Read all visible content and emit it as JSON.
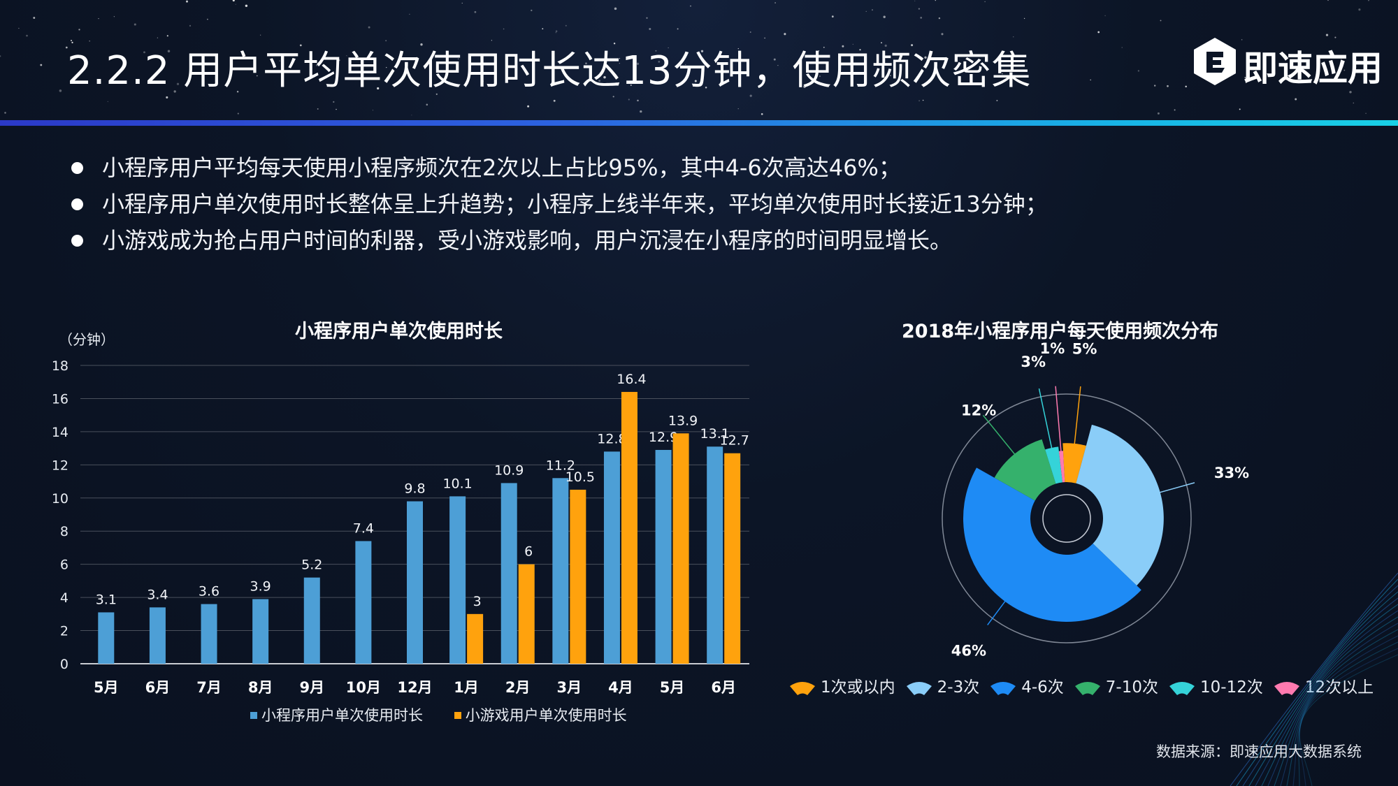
{
  "header": {
    "title": "2.2.2 用户平均单次使用时长达13分钟，使用频次密集",
    "brand": "即速应用"
  },
  "bullets": [
    "小程序用户平均每天使用小程序频次在2次以上占比95%，其中4-6次高达46%；",
    "小程序用户单次使用时长整体呈上升趋势；小程序上线半年来，平均单次使用时长接近13分钟；",
    "小游戏成为抢占用户时间的利器，受小游戏影响，用户沉浸在小程序的时间明显增长。"
  ],
  "source": "数据来源：即速应用大数据系统",
  "colors": {
    "series_blue": "#4d9fd6",
    "series_orange": "#ffa20d",
    "title_gradient_start": "#2b39c8",
    "title_gradient_end": "#19d0e6"
  },
  "chart_data": [
    {
      "type": "bar",
      "title": "小程序用户单次使用时长",
      "ylabel": "（分钟）",
      "xlabel": "",
      "ylim": [
        0,
        18
      ],
      "yticks": [
        0,
        2,
        4,
        6,
        8,
        10,
        12,
        14,
        16,
        18
      ],
      "grid": true,
      "legend_position": "bottom",
      "categories": [
        "5月",
        "6月",
        "7月",
        "8月",
        "9月",
        "10月",
        "12月",
        "1月",
        "2月",
        "3月",
        "4月",
        "5月",
        "6月"
      ],
      "series": [
        {
          "name": "小程序用户单次使用时长",
          "color": "#4d9fd6",
          "values": [
            3.1,
            3.4,
            3.6,
            3.9,
            5.2,
            7.4,
            9.8,
            10.1,
            10.9,
            11.2,
            12.8,
            12.9,
            13.1
          ]
        },
        {
          "name": "小游戏用户单次使用时长",
          "color": "#ffa20d",
          "values": [
            null,
            null,
            null,
            null,
            null,
            null,
            null,
            3,
            6,
            10.5,
            16.4,
            13.9,
            12.7
          ]
        }
      ]
    },
    {
      "type": "pie",
      "title": "2018年小程序用户每天使用频次分布",
      "legend_position": "bottom",
      "slices": [
        {
          "label": "1次或以内",
          "value": 5,
          "display": "5%",
          "color": "#ffa20d"
        },
        {
          "label": "2-3次",
          "value": 33,
          "display": "33%",
          "color": "#8acdf8"
        },
        {
          "label": "4-6次",
          "value": 46,
          "display": "46%",
          "color": "#1e8bf5"
        },
        {
          "label": "7-10次",
          "value": 12,
          "display": "12%",
          "color": "#35b16c"
        },
        {
          "label": "10-12次",
          "value": 3,
          "display": "3%",
          "color": "#35d3d9"
        },
        {
          "label": "12次以上",
          "value": 1,
          "display": "1%",
          "color": "#ff7ab0"
        }
      ]
    }
  ]
}
